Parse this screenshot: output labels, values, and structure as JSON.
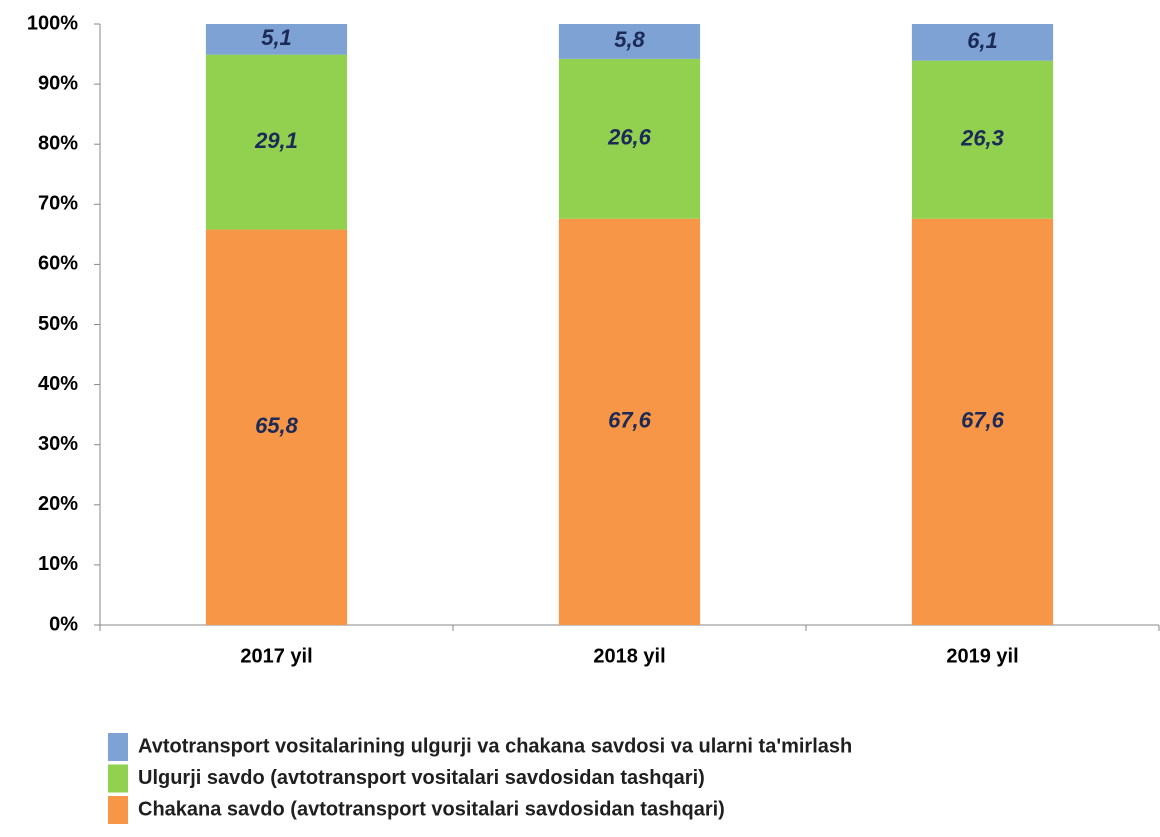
{
  "chart_data": {
    "type": "stacked_bar",
    "categories": [
      "2017 yil",
      "2018 yil",
      "2019 yil"
    ],
    "series": [
      {
        "name": "Chakana savdo (avtotransport vositalari savdosidan tashqari)",
        "color": "#f79646",
        "values": [
          65.8,
          67.6,
          67.6
        ],
        "value_labels": [
          "65,8",
          "67,6",
          "67,6"
        ]
      },
      {
        "name": "Ulgurji savdo (avtotransport vositalari savdosidan tashqari)",
        "color": "#92d050",
        "values": [
          29.1,
          26.6,
          26.3
        ],
        "value_labels": [
          "29,1",
          "26,6",
          "26,3"
        ]
      },
      {
        "name": "Avtotransport vositalarining ulgurji va chakana savdosi va ularni ta'mirlash",
        "color": "#7ea2d4",
        "values": [
          5.1,
          5.8,
          6.1
        ],
        "value_labels": [
          "5,1",
          "5,8",
          "6,1"
        ]
      }
    ],
    "ylim": [
      0,
      100
    ],
    "yticks": [
      {
        "value": 0,
        "label": "0%"
      },
      {
        "value": 10,
        "label": "10%"
      },
      {
        "value": 20,
        "label": "20%"
      },
      {
        "value": 30,
        "label": "30%"
      },
      {
        "value": 40,
        "label": "40%"
      },
      {
        "value": 50,
        "label": "50%"
      },
      {
        "value": 60,
        "label": "60%"
      },
      {
        "value": 70,
        "label": "70%"
      },
      {
        "value": 80,
        "label": "80%"
      },
      {
        "value": 90,
        "label": "90%"
      },
      {
        "value": 100,
        "label": "100%"
      }
    ],
    "grid": false
  }
}
